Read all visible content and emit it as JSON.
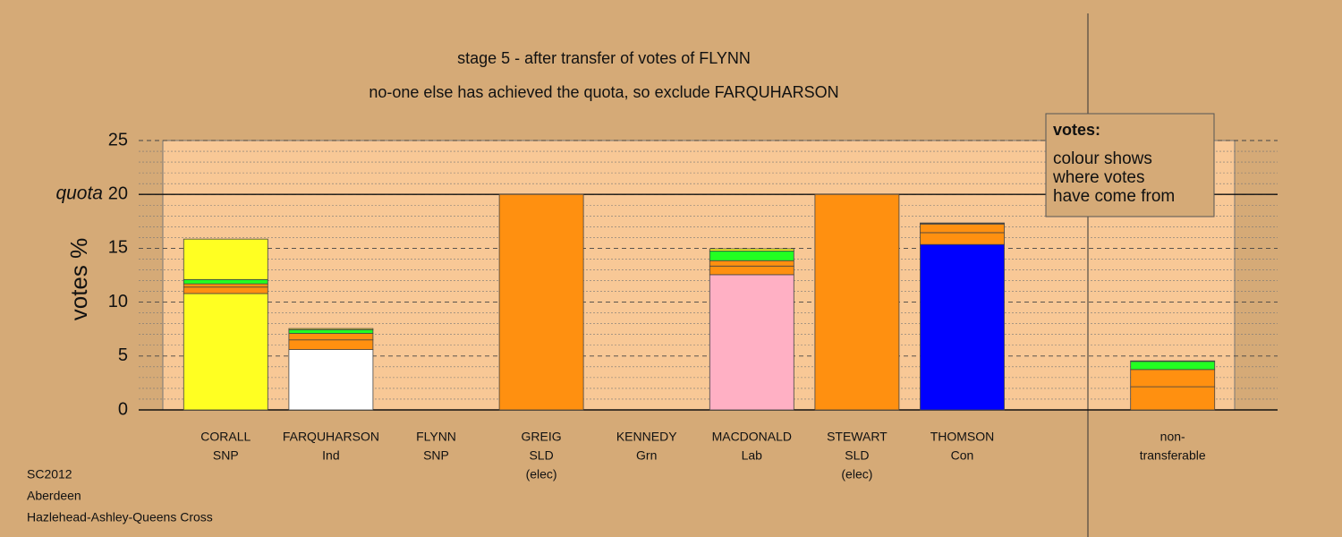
{
  "chart_data": {
    "type": "bar",
    "stacked": true,
    "title": "stage 5 - after transfer of votes of FLYNN",
    "subtitle": "no-one else has achieved the quota, so exclude FARQUHARSON",
    "ylabel": "votes %",
    "quota": {
      "label": "quota",
      "value": 20
    },
    "categories": [
      [
        "CORALL",
        "SNP"
      ],
      [
        "FARQUHARSON",
        "Ind"
      ],
      [
        "FLYNN",
        "SNP"
      ],
      [
        "GREIG",
        "SLD",
        "(elec)"
      ],
      [
        "KENNEDY",
        "Grn"
      ],
      [
        "MACDONALD",
        "Lab"
      ],
      [
        "STEWART",
        "SLD",
        "(elec)"
      ],
      [
        "THOMSON",
        "Con"
      ],
      [
        "non-",
        "transferable"
      ]
    ],
    "series": [
      {
        "color": "#ffff22",
        "values": [
          10.8,
          0,
          0,
          0,
          0,
          0,
          0,
          0,
          0
        ]
      },
      {
        "color": "#ffffff",
        "values": [
          0,
          5.6,
          0,
          0,
          0,
          0,
          0,
          0,
          0
        ]
      },
      {
        "color": "#ffb0c4",
        "values": [
          0,
          0,
          0,
          0,
          0,
          12.55,
          0,
          0,
          0
        ]
      },
      {
        "color": "#0000ff",
        "values": [
          0,
          0,
          0,
          0,
          0,
          0,
          0,
          15.35,
          0
        ]
      },
      {
        "color": "#ff9010",
        "values": [
          0.6,
          0.9,
          0,
          20,
          0,
          0.8,
          20,
          1.1,
          2.15
        ]
      },
      {
        "color": "#ff9010",
        "values": [
          0.3,
          0.6,
          0,
          0,
          0,
          0.5,
          0,
          0.8,
          1.6
        ]
      },
      {
        "color": "#22ff22",
        "values": [
          0.4,
          0.35,
          0,
          0,
          0,
          0.9,
          0,
          0.05,
          0.75
        ]
      },
      {
        "color": "#ffff22",
        "values": [
          3.75,
          0.1,
          0,
          0,
          0,
          0.2,
          0,
          0.05,
          0.05
        ]
      }
    ],
    "ylim": [
      0,
      25
    ],
    "yticks": [
      0,
      5,
      10,
      15,
      20,
      25
    ],
    "yminorticks": [
      1,
      2,
      3,
      4,
      6,
      7,
      8,
      9,
      11,
      12,
      13,
      14,
      16,
      17,
      18,
      19,
      21,
      22,
      23,
      24
    ],
    "grid": true,
    "legend_box": {
      "title": "votes:",
      "lines": [
        "colour shows",
        "where votes",
        "have come from"
      ]
    },
    "footer": [
      "SC2012",
      "Aberdeen",
      "Hazlehead-Ashley-Queens Cross"
    ]
  }
}
